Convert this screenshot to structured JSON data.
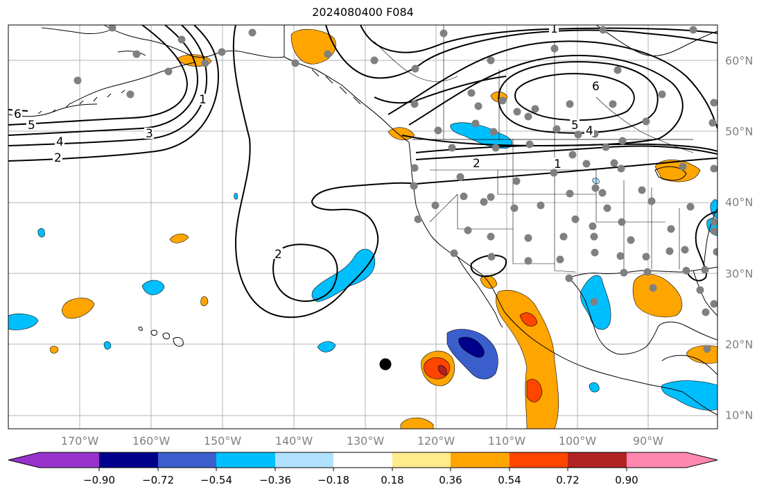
{
  "title": "2024080400 F084",
  "lon_labels": [
    "170°W",
    "160°W",
    "150°W",
    "140°W",
    "130°W",
    "120°W",
    "110°W",
    "100°W",
    "90°W"
  ],
  "lat_labels": [
    "60°N",
    "50°N",
    "40°N",
    "30°N",
    "20°N",
    "10°N"
  ],
  "colorbar": {
    "labels": [
      "−0.90",
      "−0.72",
      "−0.54",
      "−0.36",
      "−0.18",
      "0.18",
      "0.36",
      "0.54",
      "0.72",
      "0.90"
    ],
    "colors": [
      "#9932CC",
      "#00008B",
      "#3A5FCD",
      "#00BFFF",
      "#B0E2FF",
      "#FFFFFF",
      "#FFEC8B",
      "#FFA500",
      "#FF4500",
      "#B22222",
      "#FF88B0"
    ]
  },
  "contour_labels": [
    "1",
    "1",
    "1",
    "2",
    "2",
    "2",
    "3",
    "4",
    "4",
    "5",
    "5",
    "6",
    "6"
  ],
  "colors": {
    "grid": "#b3b3b3",
    "station": "#808080",
    "contour": "#000000",
    "land_line": "#000000"
  }
}
